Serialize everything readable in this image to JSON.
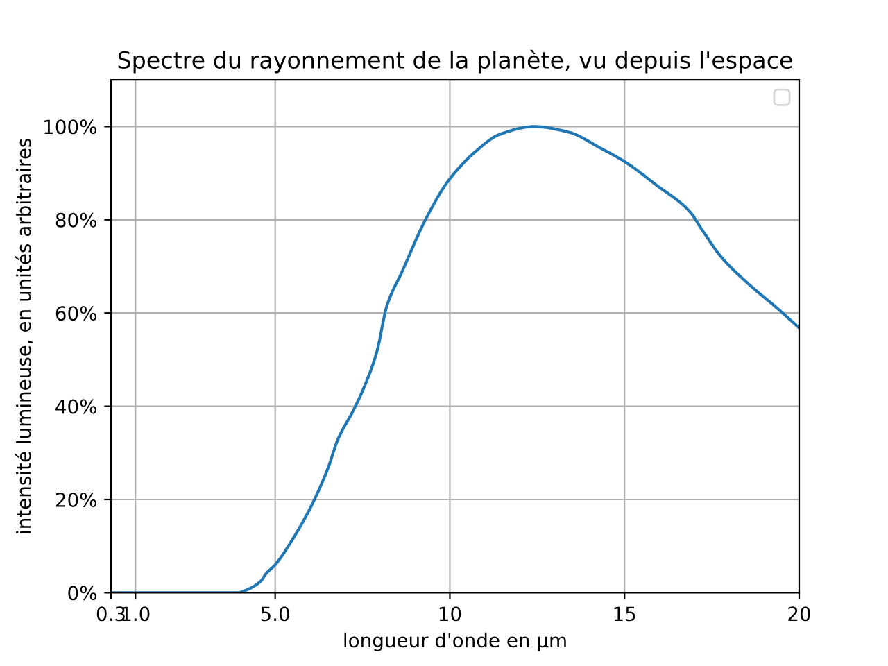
{
  "chart_data": {
    "type": "line",
    "title": "Spectre du rayonnement de la planète, vu depuis l'espace",
    "xlabel": "longueur d'onde en µm",
    "ylabel": "intensité lumineuse, en unités arbitraires",
    "xlim": [
      0.3,
      20
    ],
    "xticks": [
      0.3,
      {
        "value": 1.0,
        "label": "1.0"
      },
      {
        "value": 5.0,
        "label": "5.0"
      },
      10,
      15,
      20
    ],
    "ylim": [
      0,
      110
    ],
    "yticks": [
      {
        "value": 0,
        "label": "0%"
      },
      {
        "value": 20,
        "label": "20%"
      },
      {
        "value": 40,
        "label": "40%"
      },
      {
        "value": 60,
        "label": "60%"
      },
      {
        "value": 80,
        "label": "80%"
      },
      {
        "value": 100,
        "label": "100%"
      }
    ],
    "grid": true,
    "series": [
      {
        "color": "#1f77b4",
        "x": [
          0.3,
          3.9,
          4.27,
          4.6,
          4.74,
          5.0,
          5.46,
          6.06,
          6.52,
          6.79,
          7.25,
          7.58,
          7.91,
          8.2,
          8.64,
          9.3,
          9.96,
          10.76,
          11.42,
          12.41,
          13.4,
          14.33,
          15.02,
          15.92,
          16.85,
          17.25,
          17.77,
          18.57,
          19.36,
          20
        ],
        "values": [
          0,
          0,
          0.9,
          2.6,
          4.1,
          6,
          11,
          19,
          26.9,
          32.8,
          39.3,
          44.7,
          51.7,
          61.6,
          69,
          80,
          88.4,
          94.8,
          98.3,
          100,
          98.8,
          95.3,
          92.4,
          87.4,
          81.9,
          77.5,
          72,
          66.1,
          61.1,
          56.8
        ]
      }
    ]
  }
}
